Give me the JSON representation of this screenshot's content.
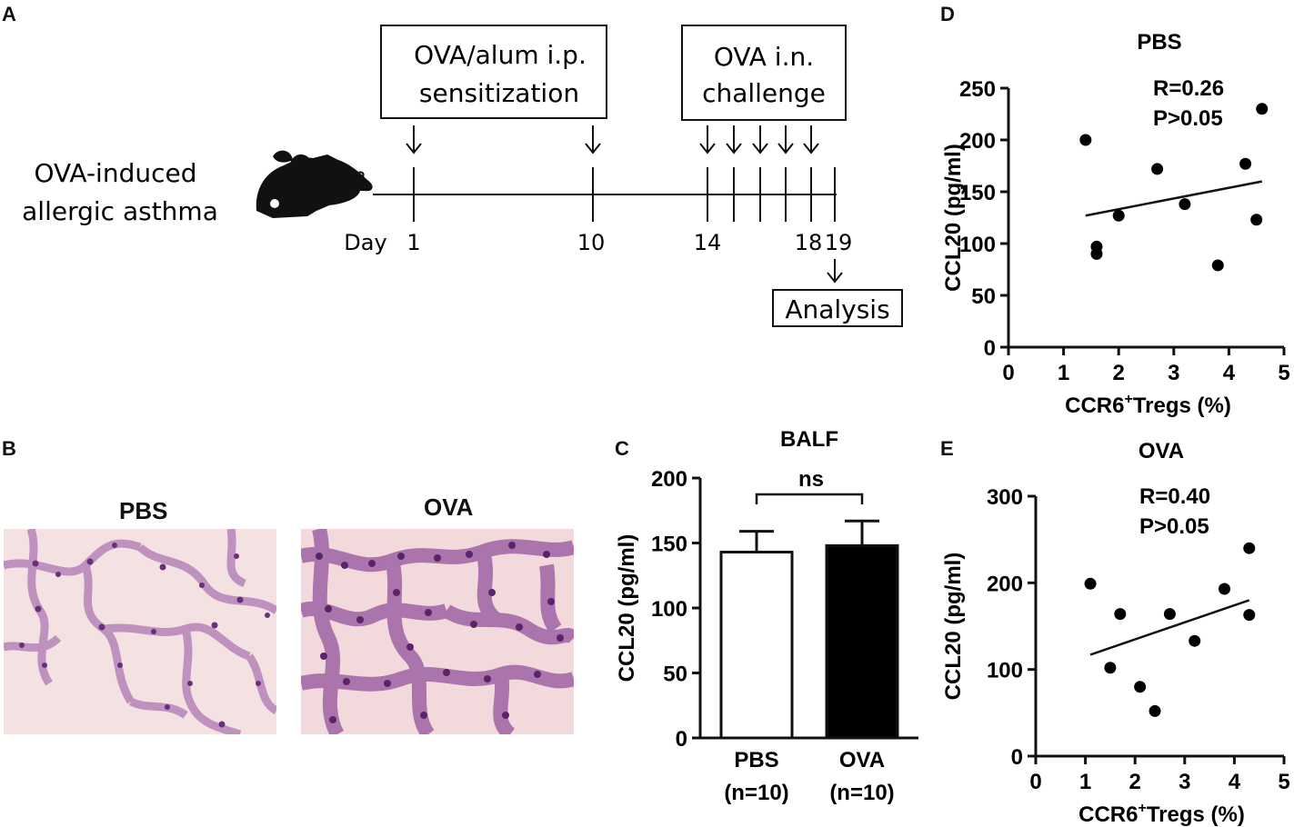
{
  "panels": {
    "a": "A",
    "b": "B",
    "c": "C",
    "d": "D",
    "e": "E"
  },
  "panel_a": {
    "model_label_line1": "OVA-induced",
    "model_label_line2": "allergic asthma",
    "sensitization_line1": "OVA/alum i.p.",
    "sensitization_line2": "sensitization",
    "challenge_line1": "OVA i.n.",
    "challenge_line2": "challenge",
    "day_label": "Day",
    "days": [
      "1",
      "10",
      "14",
      "18",
      "19"
    ],
    "analysis_label": "Analysis"
  },
  "panel_b": {
    "left_title": "PBS",
    "right_title": "OVA"
  },
  "chart_data": [
    {
      "id": "C",
      "type": "bar",
      "title": "BALF",
      "ylabel": "CCL20 (pg/ml)",
      "ylim": [
        0,
        200
      ],
      "yticks": [
        "0",
        "50",
        "100",
        "150",
        "200"
      ],
      "categories": [
        "PBS",
        "OVA"
      ],
      "category_sublabels": [
        "(n=10)",
        "(n=10)"
      ],
      "values": [
        143,
        148
      ],
      "errors": [
        16,
        19
      ],
      "bar_colors": [
        "#ffffff",
        "#000000"
      ],
      "significance": "ns"
    },
    {
      "id": "D",
      "type": "scatter",
      "title": "PBS",
      "xlabel": "CCR6",
      "xlabel_sup": "+",
      "xlabel_rest": "Tregs (%)",
      "ylabel": "CCL20 (pg/ml)",
      "xlim": [
        0,
        5
      ],
      "ylim": [
        0,
        250
      ],
      "xticks": [
        "0",
        "1",
        "2",
        "3",
        "4",
        "5"
      ],
      "yticks": [
        "0",
        "50",
        "100",
        "150",
        "200",
        "250"
      ],
      "points": [
        [
          1.4,
          200
        ],
        [
          1.6,
          97
        ],
        [
          1.6,
          90
        ],
        [
          2.0,
          127
        ],
        [
          2.7,
          172
        ],
        [
          3.2,
          138
        ],
        [
          3.8,
          79
        ],
        [
          4.3,
          177
        ],
        [
          4.5,
          123
        ],
        [
          4.6,
          230
        ]
      ],
      "fit_line": [
        [
          1.4,
          127
        ],
        [
          4.6,
          160
        ]
      ],
      "annotation_r": "R=0.26",
      "annotation_p": "P>0.05"
    },
    {
      "id": "E",
      "type": "scatter",
      "title": "OVA",
      "xlabel": "CCR6",
      "xlabel_sup": "+",
      "xlabel_rest": "Tregs (%)",
      "ylabel": "CCL20 (pg/ml)",
      "xlim": [
        0,
        5
      ],
      "ylim": [
        0,
        300
      ],
      "xticks": [
        "0",
        "1",
        "2",
        "3",
        "4",
        "5"
      ],
      "yticks": [
        "0",
        "100",
        "200",
        "300"
      ],
      "points": [
        [
          1.1,
          199
        ],
        [
          1.5,
          102
        ],
        [
          1.7,
          164
        ],
        [
          2.1,
          80
        ],
        [
          2.4,
          52
        ],
        [
          2.7,
          164
        ],
        [
          3.2,
          133
        ],
        [
          3.8,
          193
        ],
        [
          4.3,
          240
        ],
        [
          4.3,
          163
        ]
      ],
      "fit_line": [
        [
          1.1,
          117
        ],
        [
          4.3,
          180
        ]
      ],
      "annotation_r": "R=0.40",
      "annotation_p": "P>0.05"
    }
  ]
}
